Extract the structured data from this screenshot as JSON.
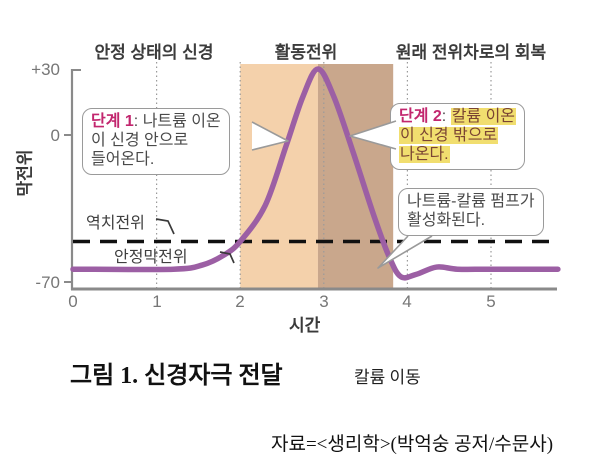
{
  "colors": {
    "curve": "#9c5fa4",
    "band_light": "#f4d1ab",
    "band_dark": "#c9a78c",
    "accent_magenta": "#c2266e",
    "highlight_yellow": "#f1de6f",
    "highlight_text": "#7a4433",
    "axis_gray": "#8a8a8a",
    "text_gray": "#4a4a4a"
  },
  "headers": {
    "left": "안정 상태의 신경",
    "center": "활동전위",
    "right": "원래 전위차로의 회복"
  },
  "y_axis": {
    "label": "막전위",
    "tick_top": "+30",
    "tick_mid": "0",
    "tick_bottom": "-70"
  },
  "x_axis": {
    "label": "시간",
    "ticks": [
      "0",
      "1",
      "2",
      "3",
      "4",
      "5"
    ]
  },
  "labels": {
    "threshold": "역치전위",
    "resting": "안정막전위"
  },
  "callout1": {
    "title": "단계 1",
    "sep": ": ",
    "line1": "나트륨 이온",
    "line2": "이 신경 안으로",
    "line3": "들어온다."
  },
  "callout2": {
    "title": "단계 2",
    "sep": ": ",
    "line1": "칼륨 이온",
    "line2": "이 신경 밖으로",
    "line3": "나온다."
  },
  "callout3": {
    "line1": "나트륨-칼륨 펌프가",
    "line2": "활성화된다."
  },
  "caption": {
    "title": "그림 1. 신경자극 전달",
    "subtitle": "칼륨 이동"
  },
  "source_line": "자료=<생리학>(박억숭 공저/수문사)",
  "chart_data": {
    "type": "line",
    "title": "그림 1. 신경자극 전달",
    "xlabel": "시간",
    "ylabel": "막전위",
    "x_ticks": [
      0,
      1,
      2,
      3,
      4,
      5
    ],
    "y_ticks": [
      30,
      0,
      -70
    ],
    "xlim": [
      0,
      5.8
    ],
    "ylim": [
      -72,
      32
    ],
    "grid": "vertical-dotted",
    "legend": "none",
    "threshold_mv": -50,
    "resting_mv": -63,
    "regions": [
      {
        "label": "depolarization (단계 1)",
        "from": 2.0,
        "to": 2.93,
        "color": "#f4d1ab"
      },
      {
        "label": "repolarization (단계 2)",
        "from": 2.93,
        "to": 3.83,
        "color": "#c9a78c"
      }
    ],
    "series": [
      {
        "name": "막전위",
        "points": [
          [
            0,
            -63
          ],
          [
            1.2,
            -63
          ],
          [
            1.55,
            -61
          ],
          [
            1.8,
            -56.5
          ],
          [
            2.0,
            -50
          ],
          [
            2.3,
            -33
          ],
          [
            2.55,
            -5
          ],
          [
            2.75,
            18
          ],
          [
            2.93,
            31
          ],
          [
            3.12,
            18
          ],
          [
            3.35,
            -8
          ],
          [
            3.6,
            -38
          ],
          [
            3.78,
            -57
          ],
          [
            3.92,
            -66.5
          ],
          [
            4.1,
            -65.5
          ],
          [
            4.35,
            -62
          ],
          [
            4.6,
            -63
          ],
          [
            5.0,
            -63
          ],
          [
            5.8,
            -63
          ]
        ]
      }
    ],
    "annotations": [
      "단계 1: 나트륨 이온이 신경 안으로 들어온다.",
      "단계 2: 칼륨 이온이 신경 밖으로 나온다.",
      "나트륨-칼륨 펌프가 활성화된다.",
      "역치전위 = -50",
      "안정막전위 = -63"
    ]
  }
}
